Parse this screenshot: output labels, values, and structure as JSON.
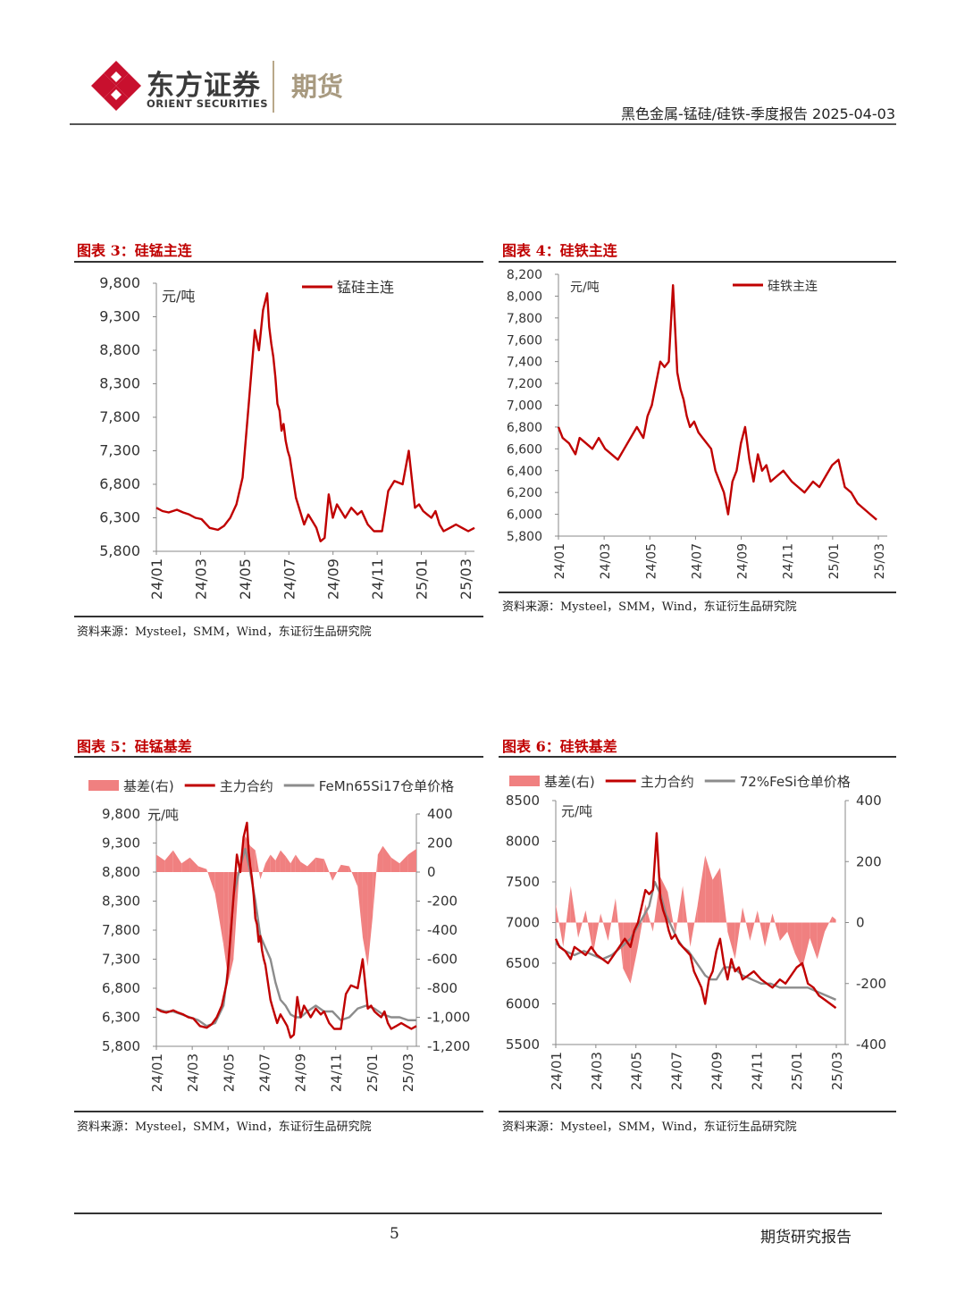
{
  "header": {
    "brand_cn": "东方证券",
    "brand_en": "ORIENT SECURITIES",
    "division": "期货",
    "report_title": "黑色金属-锰硅/硅铁-季度报告 2025-04-03",
    "brand_color": "#c8102e"
  },
  "footer": {
    "page_number": "5",
    "label": "期货研究报告"
  },
  "chart_data": [
    {
      "id": "chart3",
      "type": "line",
      "title": "图表 3：硅锰主连",
      "unit_label": "元/吨",
      "legend": [
        "锰硅主连"
      ],
      "ylim": [
        5800,
        9800
      ],
      "yticks": [
        "9,800",
        "9,300",
        "8,800",
        "8,300",
        "7,800",
        "7,300",
        "6,800",
        "6,300",
        "5,800"
      ],
      "xticks": [
        "24/01",
        "24/03",
        "24/05",
        "24/07",
        "24/09",
        "24/11",
        "25/01",
        "25/03"
      ],
      "source": "资料来源：Mysteel，SMM，Wind，东证衍生品研究院",
      "series": [
        {
          "name": "锰硅主连",
          "color": "#c00000",
          "x": [
            0,
            0.3,
            0.6,
            1,
            1.3,
            1.6,
            1.9,
            2.2,
            2.6,
            3,
            3.3,
            3.6,
            3.9,
            4.2,
            4.5,
            4.8,
            5,
            5.2,
            5.4,
            5.5,
            5.6,
            5.7,
            5.8,
            5.9,
            6,
            6.1,
            6.2,
            6.3,
            6.4,
            6.5,
            6.6,
            6.7,
            6.8,
            6.9,
            7,
            7.1,
            7.2,
            7.4,
            7.6,
            7.8,
            8,
            8.2,
            8.4,
            8.6,
            8.8,
            9,
            9.2,
            9.5,
            9.8,
            10,
            10.3,
            10.6,
            11,
            11.3,
            11.6,
            12,
            12.3,
            12.6,
            12.8,
            13,
            13.2,
            13.4,
            13.6,
            13.8,
            14,
            14.3,
            14.6,
            14.9,
            15.2,
            15.5
          ],
          "y": [
            6450,
            6400,
            6380,
            6420,
            6380,
            6350,
            6300,
            6280,
            6150,
            6120,
            6180,
            6300,
            6500,
            6900,
            8000,
            9100,
            8800,
            9400,
            9650,
            9150,
            8900,
            8700,
            8400,
            8000,
            7900,
            7600,
            7700,
            7450,
            7300,
            7200,
            7000,
            6800,
            6600,
            6500,
            6400,
            6300,
            6200,
            6350,
            6250,
            6150,
            5950,
            6000,
            6650,
            6300,
            6500,
            6400,
            6300,
            6450,
            6350,
            6400,
            6200,
            6100,
            6100,
            6700,
            6850,
            6800,
            7300,
            6450,
            6500,
            6400,
            6350,
            6300,
            6400,
            6200,
            6100,
            6150,
            6200,
            6150,
            6100,
            6150
          ]
        }
      ]
    },
    {
      "id": "chart4",
      "type": "line",
      "title": "图表 4：硅铁主连",
      "unit_label": "元/吨",
      "legend": [
        "硅铁主连"
      ],
      "ylim": [
        5800,
        8200
      ],
      "yticks": [
        "8,200",
        "8,000",
        "7,800",
        "7,600",
        "7,400",
        "7,200",
        "7,000",
        "6,800",
        "6,600",
        "6,400",
        "6,200",
        "6,000",
        "5,800"
      ],
      "xticks": [
        "24/01",
        "24/03",
        "24/05",
        "24/07",
        "24/09",
        "24/11",
        "25/01",
        "25/03"
      ],
      "source": "资料来源：Mysteel，SMM，Wind，东证衍生品研究院",
      "series": [
        {
          "name": "硅铁主连",
          "color": "#c00000",
          "x": [
            0,
            0.2,
            0.5,
            0.8,
            1,
            1.3,
            1.6,
            1.9,
            2.2,
            2.5,
            2.8,
            3.1,
            3.4,
            3.7,
            4,
            4.2,
            4.4,
            4.6,
            4.8,
            5,
            5.2,
            5.4,
            5.6,
            5.75,
            5.9,
            6.05,
            6.2,
            6.4,
            6.6,
            6.8,
            7,
            7.2,
            7.4,
            7.6,
            7.8,
            8,
            8.2,
            8.4,
            8.6,
            8.8,
            9,
            9.2,
            9.4,
            9.6,
            9.8,
            10,
            10.3,
            10.6,
            11,
            11.3,
            11.6,
            12,
            12.3,
            12.6,
            12.9,
            13.2,
            13.5,
            13.8,
            14.1,
            14.4,
            14.7,
            15
          ],
          "y": [
            6800,
            6700,
            6650,
            6550,
            6700,
            6650,
            6600,
            6700,
            6600,
            6550,
            6500,
            6600,
            6700,
            6800,
            6700,
            6900,
            7000,
            7200,
            7400,
            7350,
            7400,
            8100,
            7300,
            7150,
            7050,
            6900,
            6800,
            6850,
            6750,
            6700,
            6650,
            6600,
            6400,
            6300,
            6200,
            6000,
            6300,
            6400,
            6650,
            6800,
            6500,
            6300,
            6550,
            6400,
            6450,
            6300,
            6350,
            6400,
            6300,
            6250,
            6200,
            6300,
            6250,
            6350,
            6450,
            6500,
            6250,
            6200,
            6100,
            6050,
            6000,
            5950
          ]
        }
      ]
    },
    {
      "id": "chart5",
      "type": "line",
      "title": "图表 5：硅锰基差",
      "unit_label": "元/吨",
      "legend": [
        "基差(右)",
        "主力合约",
        "FeMn65Si17仓单价格"
      ],
      "ylim": [
        5800,
        9800
      ],
      "y2lim": [
        -1200,
        400
      ],
      "yticks": [
        "9,800",
        "9,300",
        "8,800",
        "8,300",
        "7,800",
        "7,300",
        "6,800",
        "6,300",
        "5,800"
      ],
      "y2ticks": [
        "400",
        "200",
        "0",
        "-200",
        "-400",
        "-600",
        "-800",
        "-1,000",
        "-1,200"
      ],
      "xticks": [
        "24/01",
        "24/03",
        "24/05",
        "24/07",
        "24/09",
        "24/11",
        "25/01",
        "25/03"
      ],
      "source": "资料来源：Mysteel，SMM，Wind，东证衍生品研究院",
      "series": [
        {
          "name": "主力合约",
          "color": "#c00000",
          "x": [
            0,
            0.3,
            0.6,
            1,
            1.3,
            1.6,
            1.9,
            2.2,
            2.6,
            3,
            3.3,
            3.6,
            3.9,
            4.2,
            4.5,
            4.8,
            5,
            5.2,
            5.4,
            5.5,
            5.6,
            5.7,
            5.8,
            5.9,
            6,
            6.1,
            6.2,
            6.3,
            6.4,
            6.5,
            6.6,
            6.7,
            6.8,
            6.9,
            7,
            7.1,
            7.2,
            7.4,
            7.6,
            7.8,
            8,
            8.2,
            8.4,
            8.6,
            8.8,
            9,
            9.2,
            9.5,
            9.8,
            10,
            10.3,
            10.6,
            11,
            11.3,
            11.6,
            12,
            12.3,
            12.6,
            12.8,
            13,
            13.2,
            13.4,
            13.6,
            13.8,
            14,
            14.3,
            14.6,
            14.9,
            15.2,
            15.5
          ],
          "y": [
            6450,
            6400,
            6380,
            6420,
            6380,
            6350,
            6300,
            6280,
            6150,
            6120,
            6180,
            6300,
            6500,
            6900,
            8000,
            9100,
            8800,
            9400,
            9650,
            9150,
            8900,
            8700,
            8400,
            8000,
            7900,
            7600,
            7700,
            7450,
            7300,
            7200,
            7000,
            6800,
            6600,
            6500,
            6400,
            6300,
            6200,
            6350,
            6250,
            6150,
            5950,
            6000,
            6650,
            6300,
            6500,
            6400,
            6300,
            6450,
            6350,
            6400,
            6200,
            6100,
            6100,
            6700,
            6850,
            6800,
            7300,
            6450,
            6500,
            6400,
            6350,
            6300,
            6400,
            6200,
            6100,
            6150,
            6200,
            6150,
            6100,
            6150
          ]
        },
        {
          "name": "FeMn65Si17仓单价格",
          "color": "#8c8c8c",
          "x": [
            0,
            0.5,
            1,
            1.5,
            2,
            2.5,
            3,
            3.5,
            4,
            4.3,
            4.6,
            5,
            5.3,
            5.6,
            5.9,
            6.2,
            6.5,
            6.8,
            7.1,
            7.4,
            7.7,
            8,
            8.3,
            8.6,
            9,
            9.5,
            10,
            10.5,
            11,
            11.5,
            12,
            12.5,
            13,
            13.5,
            14,
            14.5,
            15,
            15.5
          ],
          "y": [
            6450,
            6400,
            6400,
            6350,
            6300,
            6250,
            6150,
            6200,
            6500,
            7200,
            8400,
            8900,
            9200,
            8800,
            8300,
            7700,
            7500,
            7300,
            6900,
            6600,
            6500,
            6350,
            6300,
            6300,
            6400,
            6500,
            6400,
            6400,
            6250,
            6300,
            6450,
            6500,
            6450,
            6350,
            6300,
            6300,
            6250,
            6250
          ]
        },
        {
          "name": "基差(右)",
          "color": "#f08080",
          "x": [
            0,
            0.5,
            1,
            1.5,
            2,
            2.5,
            3,
            3.5,
            4,
            4.3,
            4.6,
            5,
            5.3,
            5.6,
            5.9,
            6.2,
            6.5,
            6.8,
            7.1,
            7.4,
            7.7,
            8,
            8.3,
            8.6,
            9,
            9.5,
            10,
            10.5,
            11,
            11.5,
            12,
            12.3,
            12.6,
            12.9,
            13.2,
            13.5,
            14,
            14.5,
            15,
            15.5
          ],
          "y": [
            120,
            80,
            150,
            60,
            100,
            40,
            20,
            -150,
            -500,
            -750,
            -600,
            100,
            250,
            180,
            150,
            -50,
            60,
            120,
            80,
            150,
            110,
            60,
            120,
            70,
            40,
            100,
            90,
            -60,
            50,
            40,
            -100,
            -450,
            -650,
            -300,
            120,
            180,
            100,
            60,
            120,
            160
          ]
        }
      ]
    },
    {
      "id": "chart6",
      "type": "line",
      "title": "图表 6：硅铁基差",
      "unit_label": "元/吨",
      "legend": [
        "基差(右)",
        "主力合约",
        "72%FeSi仓单价格"
      ],
      "ylim": [
        5500,
        8500
      ],
      "y2lim": [
        -400,
        400
      ],
      "yticks": [
        "8500",
        "8000",
        "7500",
        "7000",
        "6500",
        "6000",
        "5500"
      ],
      "y2ticks": [
        "400",
        "200",
        "0",
        "-200",
        "-400"
      ],
      "xticks": [
        "24/01",
        "24/03",
        "24/05",
        "24/07",
        "24/09",
        "24/11",
        "25/01",
        "25/03"
      ],
      "source": "资料来源：Mysteel，SMM，Wind，东证衍生品研究院",
      "series": [
        {
          "name": "主力合约",
          "color": "#c00000",
          "x": [
            0,
            0.2,
            0.5,
            0.8,
            1,
            1.3,
            1.6,
            1.9,
            2.2,
            2.5,
            2.8,
            3.1,
            3.4,
            3.7,
            4,
            4.2,
            4.4,
            4.6,
            4.8,
            5,
            5.2,
            5.4,
            5.6,
            5.75,
            5.9,
            6.05,
            6.2,
            6.4,
            6.6,
            6.8,
            7,
            7.2,
            7.4,
            7.6,
            7.8,
            8,
            8.2,
            8.4,
            8.6,
            8.8,
            9,
            9.2,
            9.4,
            9.6,
            9.8,
            10,
            10.3,
            10.6,
            11,
            11.3,
            11.6,
            12,
            12.3,
            12.6,
            12.9,
            13.2,
            13.5,
            13.8,
            14.1,
            14.4,
            14.7,
            15
          ],
          "y": [
            6800,
            6700,
            6650,
            6550,
            6700,
            6650,
            6600,
            6700,
            6600,
            6550,
            6500,
            6600,
            6700,
            6800,
            6700,
            6900,
            7000,
            7200,
            7400,
            7350,
            7400,
            8100,
            7300,
            7150,
            7050,
            6900,
            6800,
            6850,
            6750,
            6700,
            6650,
            6600,
            6400,
            6300,
            6200,
            6000,
            6300,
            6400,
            6650,
            6800,
            6500,
            6300,
            6550,
            6400,
            6450,
            6300,
            6350,
            6400,
            6300,
            6250,
            6200,
            6300,
            6250,
            6350,
            6450,
            6500,
            6250,
            6200,
            6100,
            6050,
            6000,
            5950
          ]
        },
        {
          "name": "72%FeSi仓单价格",
          "color": "#8c8c8c",
          "x": [
            0,
            0.5,
            1,
            1.5,
            2,
            2.5,
            3,
            3.5,
            4,
            4.5,
            5,
            5.3,
            5.6,
            5.9,
            6.2,
            6.5,
            6.8,
            7.1,
            7.4,
            7.7,
            8,
            8.3,
            8.6,
            9,
            9.5,
            10,
            10.5,
            11,
            11.5,
            12,
            12.5,
            13,
            13.5,
            14,
            14.5,
            15
          ],
          "y": [
            6750,
            6650,
            6600,
            6650,
            6600,
            6550,
            6600,
            6700,
            6800,
            7000,
            7200,
            7500,
            7350,
            7100,
            6950,
            6800,
            6700,
            6650,
            6550,
            6450,
            6350,
            6300,
            6300,
            6450,
            6450,
            6350,
            6300,
            6250,
            6250,
            6200,
            6200,
            6200,
            6200,
            6150,
            6100,
            6050
          ]
        },
        {
          "name": "基差(右)",
          "color": "#f08080",
          "x": [
            0,
            0.4,
            0.8,
            1.2,
            1.6,
            2,
            2.4,
            2.8,
            3.2,
            3.6,
            4,
            4.4,
            4.8,
            5.2,
            5.6,
            6,
            6.4,
            6.8,
            7.2,
            7.6,
            8,
            8.4,
            8.8,
            9.2,
            9.6,
            10,
            10.4,
            10.8,
            11.2,
            11.6,
            12,
            12.4,
            12.8,
            13.2,
            13.6,
            14,
            14.4,
            14.8,
            15
          ],
          "y": [
            60,
            -80,
            120,
            -50,
            40,
            -100,
            30,
            -60,
            80,
            -150,
            -200,
            -80,
            60,
            -30,
            150,
            100,
            -40,
            120,
            -80,
            60,
            220,
            140,
            180,
            -30,
            -120,
            50,
            -60,
            40,
            -80,
            30,
            -60,
            -30,
            -100,
            -150,
            -50,
            -120,
            -30,
            20,
            10
          ]
        }
      ]
    }
  ]
}
